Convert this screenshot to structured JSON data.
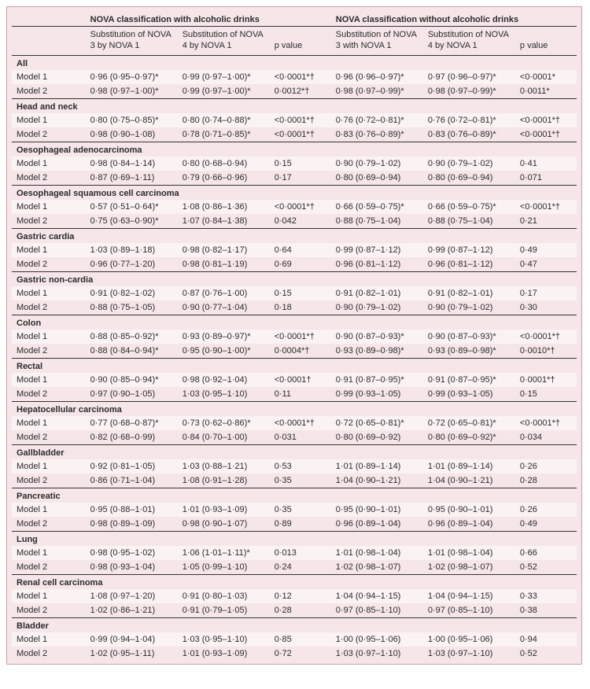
{
  "header": {
    "group_with": "NOVA classification with alcoholic drinks",
    "group_without": "NOVA classification without alcoholic drinks",
    "sub3_with": "Substitution of NOVA 3 by NOVA 1",
    "sub4_with": "Substitution of NOVA 4 by NOVA 1",
    "p_with": "p value",
    "sub3_without": "Substitution of NOVA 3 with NOVA 1",
    "sub4_without": "Substitution of NOVA 4 by NOVA 1",
    "p_without": "p value"
  },
  "row_labels": {
    "m1": "Model 1",
    "m2": "Model 2"
  },
  "sections": [
    {
      "name": "All",
      "m1": [
        "0·96 (0·95–0·97)*",
        "0·99 (0·97–1·00)*",
        "<0·0001*†",
        "0·96 (0·96–0·97)*",
        "0·97 (0·96–0·97)*",
        "<0·0001*"
      ],
      "m2": [
        "0·98 (0·97–1·00)*",
        "0·99 (0·97–1·00)*",
        "0·0012*†",
        "0·98 (0·97–0·99)*",
        "0·98 (0·97–0·99)*",
        "0·0011*"
      ]
    },
    {
      "name": "Head and neck",
      "m1": [
        "0·80 (0·75–0·85)*",
        "0·80 (0·74–0·88)*",
        "<0·0001*†",
        "0·76 (0·72–0·81)*",
        "0·76 (0·72–0·81)*",
        "<0·0001*†"
      ],
      "m2": [
        "0·98 (0·90–1·08)",
        "0·78 (0·71–0·85)*",
        "<0·0001*†",
        "0·83 (0·76–0·89)*",
        "0·83 (0·76–0·89)*",
        "<0·0001*†"
      ]
    },
    {
      "name": "Oesophageal adenocarcinoma",
      "m1": [
        "0·98 (0·84–1·14)",
        "0·80 (0·68–0·94)",
        "0·15",
        "0·90 (0·79–1·02)",
        "0·90 (0·79–1·02)",
        "0·41"
      ],
      "m2": [
        "0·87 (0·69–1·11)",
        "0·79 (0·66–0·96)",
        "0·17",
        "0·80 (0·69–0·94)",
        "0·80 (0·69–0·94)",
        "0·071"
      ]
    },
    {
      "name": "Oesophageal squamous cell carcinoma",
      "m1": [
        "0·57 (0·51–0·64)*",
        "1·08 (0·86–1·36)",
        "<0·0001*†",
        "0·66 (0·59–0·75)*",
        "0·66 (0·59–0·75)*",
        "<0·0001*†"
      ],
      "m2": [
        "0·75 (0·63–0·90)*",
        "1·07 (0·84–1·38)",
        "0·042",
        "0·88 (0·75–1·04)",
        "0·88 (0·75–1·04)",
        "0·21"
      ]
    },
    {
      "name": "Gastric cardia",
      "m1": [
        "1·03 (0·89–1·18)",
        "0·98 (0·82–1·17)",
        "0·64",
        "0·99 (0·87–1·12)",
        "0·99 (0·87–1·12)",
        "0·49"
      ],
      "m2": [
        "0·96 (0·77–1·20)",
        "0·98 (0·81–1·19)",
        "0·69",
        "0·96 (0·81–1·12)",
        "0·96 (0·81–1·12)",
        "0·47"
      ]
    },
    {
      "name": "Gastric non-cardia",
      "m1": [
        "0·91 (0·82–1·02)",
        "0·87 (0·76–1·00)",
        "0·15",
        "0·91 (0·82–1·01)",
        "0·91 (0·82–1·01)",
        "0·17"
      ],
      "m2": [
        "0·88 (0·75–1·05)",
        "0·90 (0·77–1·04)",
        "0·18",
        "0·90 (0·79–1·02)",
        "0·90 (0·79–1·02)",
        "0·30"
      ]
    },
    {
      "name": "Colon",
      "m1": [
        "0·88 (0·85–0·92)*",
        "0·93 (0·89–0·97)*",
        "<0·0001*†",
        "0·90 (0·87–0·93)*",
        "0·90 (0·87–0·93)*",
        "<0·0001*†"
      ],
      "m2": [
        "0·88 (0·84–0·94)*",
        "0·95 (0·90–1·00)*",
        "0·0004*†",
        "0·93 (0·89–0·98)*",
        "0·93 (0·89–0·98)*",
        "0·0010*†"
      ]
    },
    {
      "name": "Rectal",
      "m1": [
        "0·90 (0·85–0·94)*",
        "0·98 (0·92–1·04)",
        "<0·0001†",
        "0·91 (0·87–0·95)*",
        "0·91 (0·87–0·95)*",
        "0·0001*†"
      ],
      "m2": [
        "0·97 (0·90–1·05)",
        "1·03 (0·95–1·10)",
        "0·11",
        "0·99 (0·93–1·05)",
        "0·99 (0·93–1·05)",
        "0·15"
      ]
    },
    {
      "name": "Hepatocellular carcinoma",
      "m1": [
        "0·77 (0·68–0·87)*",
        "0·73 (0·62–0·86)*",
        "<0·0001*†",
        "0·72 (0·65–0·81)*",
        "0·72 (0·65–0·81)*",
        "<0·0001*†"
      ],
      "m2": [
        "0·82 (0·68–0·99)",
        "0·84 (0·70–1·00)",
        "0·031",
        "0·80 (0·69–0·92)",
        "0·80 (0·69–0·92)*",
        "0·034"
      ]
    },
    {
      "name": "Gallbladder",
      "m1": [
        "0·92 (0·81–1·05)",
        "1·03 (0·88–1·21)",
        "0·53",
        "1·01 (0·89–1·14)",
        "1·01 (0·89–1·14)",
        "0·26"
      ],
      "m2": [
        "0·86 (0·71–1·04)",
        "1·08 (0·91–1·28)",
        "0·35",
        "1·04 (0·90–1·21)",
        "1·04 (0·90–1·21)",
        "0·28"
      ]
    },
    {
      "name": "Pancreatic",
      "m1": [
        "0·95 (0·88–1·01)",
        "1·01 (0·93–1·09)",
        "0·35",
        "0·95 (0·90–1·01)",
        "0·95 (0·90–1·01)",
        "0·26"
      ],
      "m2": [
        "0·98 (0·89–1·09)",
        "0·98 (0·90–1·07)",
        "0·89",
        "0·96 (0·89–1·04)",
        "0·96 (0·89–1·04)",
        "0·49"
      ]
    },
    {
      "name": "Lung",
      "m1": [
        "0·98 (0·95–1·02)",
        "1·06 (1·01–1·11)*",
        "0·013",
        "1·01 (0·98–1·04)",
        "1·01 (0·98–1·04)",
        "0·66"
      ],
      "m2": [
        "0·98 (0·93–1·04)",
        "1·05 (0·99–1·10)",
        "0·24",
        "1·02 (0·98–1·07)",
        "1·02 (0·98–1·07)",
        "0·52"
      ]
    },
    {
      "name": "Renal cell carcinoma",
      "m1": [
        "1·08 (0·97–1·20)",
        "0·91 (0·80–1·03)",
        "0·12",
        "1·04 (0·94–1·15)",
        "1·04 (0·94–1·15)",
        "0·33"
      ],
      "m2": [
        "1·02 (0·86–1·21)",
        "0·91 (0·79–1·05)",
        "0·28",
        "0·97 (0·85–1·10)",
        "0·97 (0·85–1·10)",
        "0·38"
      ]
    },
    {
      "name": "Bladder",
      "m1": [
        "0·99 (0·94–1·04)",
        "1·03 (0·95–1·10)",
        "0·85",
        "1·00 (0·95–1·06)",
        "1·00 (0·95–1·06)",
        "0·94"
      ],
      "m2": [
        "1·02 (0·95–1·11)",
        "1·01 (0·93–1·09)",
        "0·72",
        "1·03 (0·97–1·10)",
        "1·03 (0·97–1·10)",
        "0·52"
      ]
    }
  ]
}
